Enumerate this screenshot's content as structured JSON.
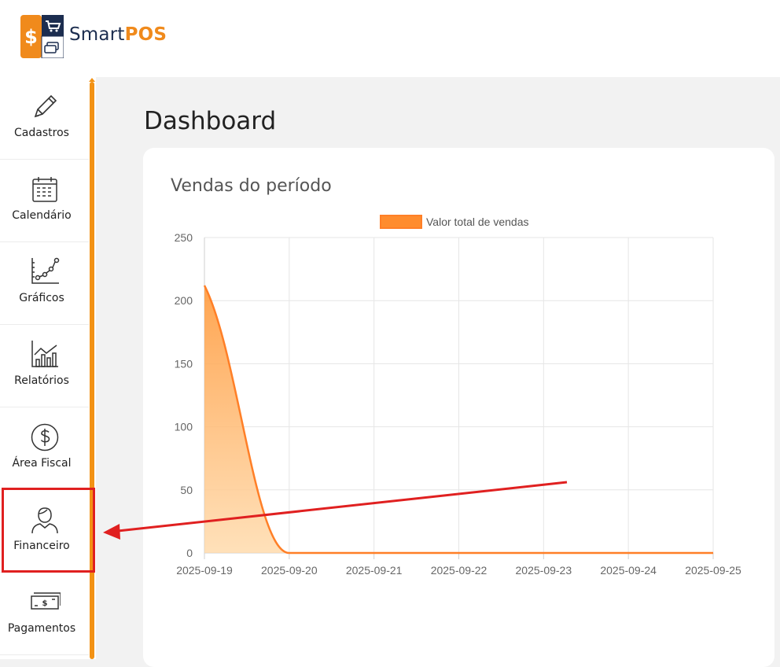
{
  "app": {
    "brand_part1": "Smart",
    "brand_part2": "POS",
    "brand_color": "#f08a1c",
    "brand_dark": "#1c2d4f"
  },
  "sidebar": {
    "accent_color": "#f39214",
    "items": [
      {
        "label": "Cadastros",
        "icon": "pencil-icon"
      },
      {
        "label": "Calendário",
        "icon": "calendar-icon"
      },
      {
        "label": "Gráficos",
        "icon": "line-chart-icon"
      },
      {
        "label": "Relatórios",
        "icon": "bar-chart-icon"
      },
      {
        "label": "Área Fiscal",
        "icon": "dollar-circle-icon"
      },
      {
        "label": "Financeiro",
        "icon": "person-icon",
        "highlighted": true
      },
      {
        "label": "Pagamentos",
        "icon": "banknote-icon"
      }
    ]
  },
  "main": {
    "title": "Dashboard",
    "card_title": "Vendas do período"
  },
  "chart_data": {
    "type": "area",
    "x": [
      "2025-09-19",
      "2025-09-20",
      "2025-09-21",
      "2025-09-22",
      "2025-09-23",
      "2025-09-24",
      "2025-09-25"
    ],
    "series": [
      {
        "name": "Valor total de vendas",
        "values": [
          212,
          0,
          0,
          0,
          0,
          0,
          0
        ],
        "color": "#ff7f27"
      }
    ],
    "ylim": [
      0,
      250
    ],
    "yticks": [
      0,
      50,
      100,
      150,
      200,
      250
    ],
    "grid": true,
    "legend": "top-center"
  },
  "annotation": {
    "arrow_color": "#e02020",
    "highlight_target": "Financeiro"
  }
}
